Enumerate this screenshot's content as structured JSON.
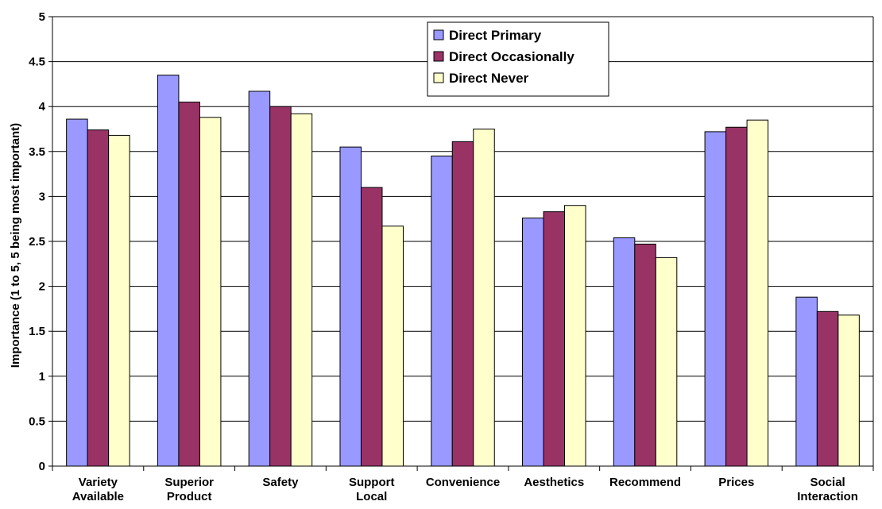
{
  "chart_data": {
    "type": "bar",
    "title": "",
    "xlabel": "",
    "ylabel": "Importance (1 to 5, 5 being most important)",
    "ylim": [
      0,
      5
    ],
    "yticks": [
      "0",
      "0.5",
      "1",
      "1.5",
      "2",
      "2.5",
      "3",
      "3.5",
      "4",
      "4.5",
      "5"
    ],
    "categories": [
      [
        "Variety",
        "Available"
      ],
      [
        "Superior",
        "Product"
      ],
      [
        "Safety"
      ],
      [
        "Support",
        "Local"
      ],
      [
        "Convenience"
      ],
      [
        "Aesthetics"
      ],
      [
        "Recommend"
      ],
      [
        "Prices"
      ],
      [
        "Social",
        "Interaction"
      ]
    ],
    "series": [
      {
        "name": "Direct Primary",
        "color": "#9999ff",
        "values": [
          3.86,
          4.35,
          4.17,
          3.55,
          3.45,
          2.76,
          2.54,
          3.72,
          1.88
        ]
      },
      {
        "name": "Direct Occasionally",
        "color": "#993366",
        "values": [
          3.74,
          4.05,
          4.0,
          3.1,
          3.61,
          2.83,
          2.47,
          3.77,
          1.72
        ]
      },
      {
        "name": "Direct Never",
        "color": "#ffffcc",
        "values": [
          3.68,
          3.88,
          3.92,
          2.67,
          3.75,
          2.9,
          2.32,
          3.85,
          1.68
        ]
      }
    ],
    "grid": true,
    "legend_position": "top-center"
  }
}
